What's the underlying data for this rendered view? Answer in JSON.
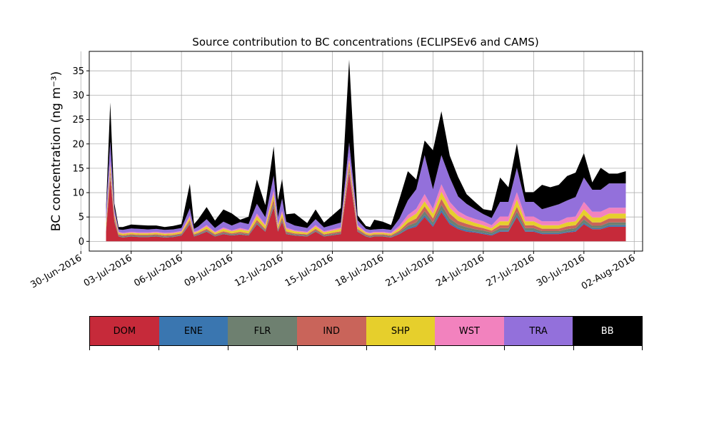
{
  "chart_data": {
    "type": "area",
    "title": "Source contribution to BC concentrations (ECLIPSEv6 and CAMS)",
    "ylabel": "BC concentration (ng m⁻³)",
    "xlabel": "",
    "ylim": [
      -2,
      39
    ],
    "yticks": [
      0,
      5,
      10,
      15,
      20,
      25,
      30,
      35
    ],
    "xlim": [
      "2016-06-30T12:00",
      "2016-08-02T12:00"
    ],
    "xtick_labels": [
      "30-Jun-2016",
      "03-Jul-2016",
      "06-Jul-2016",
      "09-Jul-2016",
      "12-Jul-2016",
      "15-Jul-2016",
      "18-Jul-2016",
      "21-Jul-2016",
      "24-Jul-2016",
      "27-Jul-2016",
      "30-Jul-2016",
      "02-Aug-2016"
    ],
    "xticks": [
      "2016-06-30",
      "2016-07-03",
      "2016-07-06",
      "2016-07-09",
      "2016-07-12",
      "2016-07-15",
      "2016-07-18",
      "2016-07-21",
      "2016-07-24",
      "2016-07-27",
      "2016-07-30",
      "2016-08-02"
    ],
    "grid": true,
    "stacked": true,
    "x": [
      "2016-07-01T12:00",
      "2016-07-01T18:00",
      "2016-07-02T00:00",
      "2016-07-02T06:00",
      "2016-07-02T12:00",
      "2016-07-03T00:00",
      "2016-07-03T12:00",
      "2016-07-04T00:00",
      "2016-07-04T12:00",
      "2016-07-05T00:00",
      "2016-07-05T12:00",
      "2016-07-06T00:00",
      "2016-07-06T12:00",
      "2016-07-06T18:00",
      "2016-07-07T00:00",
      "2016-07-07T12:00",
      "2016-07-08T00:00",
      "2016-07-08T12:00",
      "2016-07-09T00:00",
      "2016-07-09T12:00",
      "2016-07-10T00:00",
      "2016-07-10T12:00",
      "2016-07-11T00:00",
      "2016-07-11T12:00",
      "2016-07-11T18:00",
      "2016-07-12T00:00",
      "2016-07-12T06:00",
      "2016-07-12T18:00",
      "2016-07-13T12:00",
      "2016-07-14T00:00",
      "2016-07-14T12:00",
      "2016-07-15T12:00",
      "2016-07-16T00:00",
      "2016-07-16T12:00",
      "2016-07-17T00:00",
      "2016-07-17T06:00",
      "2016-07-17T12:00",
      "2016-07-18T00:00",
      "2016-07-18T12:00",
      "2016-07-19T00:00",
      "2016-07-19T12:00",
      "2016-07-20T00:00",
      "2016-07-20T12:00",
      "2016-07-21T00:00",
      "2016-07-21T12:00",
      "2016-07-22T00:00",
      "2016-07-22T12:00",
      "2016-07-23T00:00",
      "2016-07-23T12:00",
      "2016-07-24T00:00",
      "2016-07-24T12:00",
      "2016-07-25T00:00",
      "2016-07-25T12:00",
      "2016-07-26T00:00",
      "2016-07-26T12:00",
      "2016-07-27T00:00",
      "2016-07-27T12:00",
      "2016-07-28T00:00",
      "2016-07-28T12:00",
      "2016-07-29T00:00",
      "2016-07-29T12:00",
      "2016-07-30T00:00",
      "2016-07-30T12:00",
      "2016-07-31T00:00",
      "2016-07-31T12:00",
      "2016-08-01T00:00",
      "2016-08-01T12:00"
    ],
    "series": [
      {
        "name": "DOM",
        "color": "#c62a3a",
        "values": [
          2,
          13,
          4,
          1,
          0.8,
          1.0,
          0.9,
          0.9,
          1.0,
          0.8,
          0.9,
          1.2,
          3.5,
          1.0,
          1.3,
          2.0,
          1.0,
          1.5,
          1.2,
          1.4,
          1.2,
          3.5,
          2.0,
          7.0,
          2.0,
          4.0,
          1.5,
          1.2,
          1.0,
          2.0,
          1.0,
          1.5,
          14,
          2,
          1.0,
          0.8,
          1.0,
          1.0,
          0.8,
          1.5,
          2.5,
          3.0,
          5.0,
          3.0,
          6.0,
          3.5,
          2.5,
          2.0,
          1.8,
          1.5,
          1.2,
          2.0,
          2.0,
          5.0,
          2.0,
          2.0,
          1.5,
          1.5,
          1.5,
          1.8,
          2.0,
          3.5,
          2.5,
          2.5,
          3.0,
          3.0,
          3.0
        ]
      },
      {
        "name": "ENE",
        "color": "#3a76b0",
        "values": [
          0.1,
          0.2,
          0.1,
          0.05,
          0.05,
          0.05,
          0.05,
          0.05,
          0.05,
          0.05,
          0.05,
          0.05,
          0.1,
          0.05,
          0.05,
          0.05,
          0.05,
          0.05,
          0.05,
          0.05,
          0.05,
          0.1,
          0.05,
          0.2,
          0.05,
          0.1,
          0.05,
          0.05,
          0.05,
          0.05,
          0.05,
          0.05,
          0.2,
          0.05,
          0.05,
          0.05,
          0.05,
          0.05,
          0.05,
          0.1,
          0.2,
          0.3,
          0.4,
          0.3,
          0.5,
          0.4,
          0.3,
          0.3,
          0.2,
          0.2,
          0.2,
          0.2,
          0.2,
          0.3,
          0.2,
          0.2,
          0.2,
          0.2,
          0.2,
          0.2,
          0.2,
          0.3,
          0.2,
          0.2,
          0.3,
          0.3,
          0.3
        ]
      },
      {
        "name": "FLR",
        "color": "#6e8070",
        "values": [
          0.2,
          0.5,
          0.3,
          0.2,
          0.2,
          0.2,
          0.2,
          0.2,
          0.2,
          0.2,
          0.2,
          0.2,
          0.3,
          0.2,
          0.2,
          0.2,
          0.2,
          0.2,
          0.2,
          0.2,
          0.2,
          0.3,
          0.2,
          0.5,
          0.2,
          0.3,
          0.2,
          0.2,
          0.2,
          0.2,
          0.2,
          0.2,
          0.5,
          0.2,
          0.2,
          0.2,
          0.2,
          0.2,
          0.2,
          0.3,
          0.5,
          0.6,
          0.8,
          0.6,
          1.0,
          0.8,
          0.6,
          0.6,
          0.5,
          0.5,
          0.4,
          0.5,
          0.5,
          0.8,
          0.5,
          0.5,
          0.4,
          0.4,
          0.4,
          0.5,
          0.5,
          0.7,
          0.5,
          0.5,
          0.6,
          0.6,
          0.6
        ]
      },
      {
        "name": "IND",
        "color": "#c9645a",
        "values": [
          0.3,
          1.0,
          0.5,
          0.2,
          0.2,
          0.2,
          0.2,
          0.2,
          0.2,
          0.2,
          0.2,
          0.2,
          0.5,
          0.2,
          0.2,
          0.3,
          0.2,
          0.3,
          0.2,
          0.3,
          0.2,
          0.5,
          0.3,
          1.0,
          0.3,
          0.6,
          0.3,
          0.2,
          0.2,
          0.3,
          0.2,
          0.3,
          1.0,
          0.3,
          0.2,
          0.2,
          0.2,
          0.2,
          0.2,
          0.3,
          0.6,
          0.8,
          1.0,
          0.8,
          1.2,
          1.0,
          0.8,
          0.7,
          0.6,
          0.5,
          0.4,
          0.6,
          0.6,
          1.0,
          0.6,
          0.6,
          0.5,
          0.5,
          0.5,
          0.6,
          0.6,
          0.9,
          0.7,
          0.7,
          0.8,
          0.8,
          0.8
        ]
      },
      {
        "name": "SHP",
        "color": "#e6cf2c",
        "values": [
          1.0,
          1.0,
          0.5,
          0.3,
          0.3,
          0.3,
          0.3,
          0.3,
          0.3,
          0.3,
          0.3,
          0.3,
          0.5,
          0.3,
          0.3,
          0.5,
          0.3,
          0.5,
          0.4,
          0.5,
          0.5,
          0.8,
          0.6,
          1.0,
          0.6,
          0.8,
          0.5,
          0.4,
          0.3,
          0.5,
          0.4,
          0.5,
          0.8,
          0.5,
          0.3,
          0.3,
          0.3,
          0.3,
          0.3,
          0.5,
          0.8,
          1.0,
          1.0,
          1.0,
          1.5,
          1.2,
          1.0,
          0.8,
          0.7,
          0.6,
          0.5,
          0.8,
          0.8,
          1.5,
          0.8,
          0.8,
          0.7,
          0.7,
          0.7,
          0.8,
          0.8,
          1.2,
          1.0,
          1.0,
          1.0,
          1.0,
          1.0
        ]
      },
      {
        "name": "WST",
        "color": "#f282be",
        "values": [
          0.3,
          0.8,
          0.4,
          0.2,
          0.2,
          0.2,
          0.2,
          0.2,
          0.2,
          0.2,
          0.2,
          0.2,
          0.4,
          0.2,
          0.2,
          0.3,
          0.2,
          0.3,
          0.2,
          0.3,
          0.2,
          0.5,
          0.3,
          0.8,
          0.3,
          0.5,
          0.3,
          0.2,
          0.2,
          0.3,
          0.2,
          0.3,
          0.8,
          0.3,
          0.2,
          0.2,
          0.2,
          0.2,
          0.2,
          0.5,
          0.8,
          1.0,
          1.5,
          1.0,
          1.5,
          1.2,
          1.0,
          0.8,
          0.8,
          0.8,
          0.6,
          1.0,
          1.0,
          1.5,
          1.0,
          1.0,
          0.8,
          0.8,
          0.8,
          1.0,
          1.0,
          1.5,
          1.2,
          1.2,
          1.2,
          1.2,
          1.2
        ]
      },
      {
        "name": "TRA",
        "color": "#9370db",
        "values": [
          2.5,
          4.0,
          1.0,
          0.5,
          0.6,
          0.7,
          0.7,
          0.6,
          0.6,
          0.6,
          0.6,
          0.6,
          1.5,
          0.6,
          0.8,
          1.2,
          0.8,
          1.2,
          1.0,
          1.2,
          1.2,
          2.0,
          1.5,
          3.0,
          1.5,
          2.5,
          1.2,
          1.0,
          0.8,
          1.2,
          0.8,
          1.0,
          3.0,
          1.0,
          0.6,
          0.6,
          0.5,
          0.6,
          0.6,
          1.5,
          3.0,
          4.0,
          8.0,
          4.0,
          6.0,
          5.0,
          3.0,
          2.5,
          2.0,
          1.5,
          1.5,
          3.0,
          3.0,
          5.0,
          3.0,
          3.0,
          2.5,
          3.0,
          3.5,
          3.5,
          4.0,
          5.0,
          4.5,
          4.5,
          5.0,
          5.0,
          5.0
        ]
      },
      {
        "name": "BB",
        "color": "#000000",
        "values": [
          0.5,
          8.0,
          1.0,
          0.5,
          0.6,
          0.8,
          0.8,
          0.8,
          0.7,
          0.6,
          0.7,
          0.8,
          5.0,
          1.0,
          1.5,
          2.5,
          1.5,
          2.5,
          2.5,
          0.5,
          1.5,
          5.0,
          2.5,
          6.0,
          3.5,
          4.0,
          1.5,
          2.5,
          1.0,
          2.0,
          1.0,
          3.0,
          17,
          1.0,
          0.6,
          0.6,
          2.0,
          1.5,
          1.0,
          4.0,
          6.0,
          2.0,
          3.0,
          8.0,
          9.0,
          4.5,
          4.0,
          2.0,
          1.5,
          1.0,
          1.5,
          5.0,
          3.0,
          5.0,
          2.0,
          2.0,
          5.0,
          4.0,
          4.0,
          5.0,
          5.0,
          5.0,
          1.5,
          4.5,
          2.0,
          2.0,
          2.5
        ]
      }
    ],
    "legend": [
      "DOM",
      "ENE",
      "FLR",
      "IND",
      "SHP",
      "WST",
      "TRA",
      "BB"
    ],
    "legend_placement": "bottom"
  }
}
